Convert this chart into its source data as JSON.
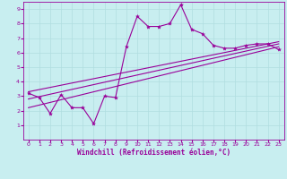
{
  "background_color": "#c8eef0",
  "grid_color": "#b0dde0",
  "line_color": "#990099",
  "xlabel": "Windchill (Refroidissement éolien,°C)",
  "xlim": [
    -0.5,
    23.5
  ],
  "ylim": [
    0,
    9.5
  ],
  "xticks": [
    0,
    1,
    2,
    3,
    4,
    5,
    6,
    7,
    8,
    9,
    10,
    11,
    12,
    13,
    14,
    15,
    16,
    17,
    18,
    19,
    20,
    21,
    22,
    23
  ],
  "yticks": [
    1,
    2,
    3,
    4,
    5,
    6,
    7,
    8,
    9
  ],
  "series1_x": [
    0,
    1,
    2,
    3,
    4,
    5,
    6,
    7,
    8,
    9,
    10,
    11,
    12,
    13,
    14,
    15,
    16,
    17,
    18,
    19,
    20,
    21,
    22,
    23
  ],
  "series1_y": [
    3.2,
    2.9,
    1.8,
    3.1,
    2.2,
    2.2,
    1.1,
    3.0,
    2.9,
    6.4,
    8.5,
    7.8,
    7.8,
    8.0,
    9.3,
    7.6,
    7.3,
    6.5,
    6.3,
    6.3,
    6.5,
    6.6,
    6.6,
    6.2
  ],
  "series2_x": [
    0,
    23
  ],
  "series2_y": [
    2.2,
    6.4
  ],
  "series3_x": [
    0,
    23
  ],
  "series3_y": [
    2.8,
    6.6
  ],
  "series4_x": [
    0,
    23
  ],
  "series4_y": [
    3.3,
    6.75
  ],
  "marker": "*",
  "markersize": 3,
  "linewidth": 0.8,
  "xlabel_fontsize": 5.5,
  "tick_fontsize": 4.5
}
